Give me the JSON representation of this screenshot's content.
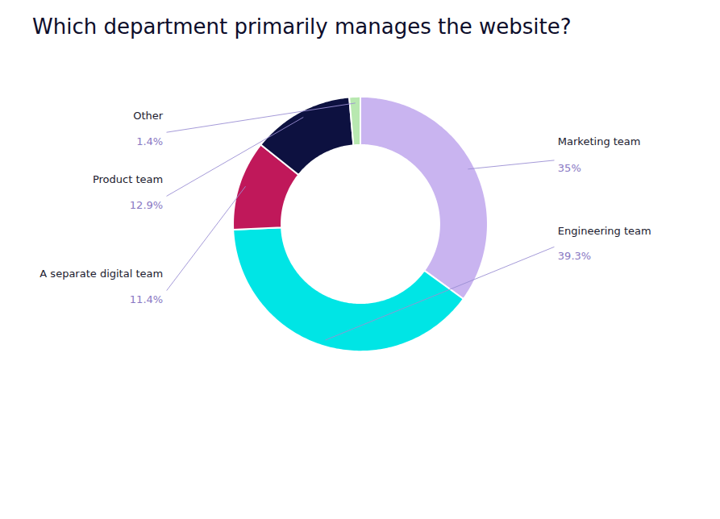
{
  "chart_data": {
    "type": "pie",
    "title": "Which department primarily manages the website?",
    "categories": [
      "Marketing team",
      "Engineering team",
      "A separate digital team",
      "Product team",
      "Other"
    ],
    "values": [
      35.0,
      39.3,
      11.4,
      12.9,
      1.4
    ],
    "colors": [
      "#c9b4f0",
      "#00e5e5",
      "#c0185a",
      "#0d1140",
      "#b8e8b0"
    ],
    "data_labels": true,
    "value_labels": [
      "35%",
      "39.3%",
      "11.4%",
      "12.9%",
      "1.4%"
    ]
  }
}
